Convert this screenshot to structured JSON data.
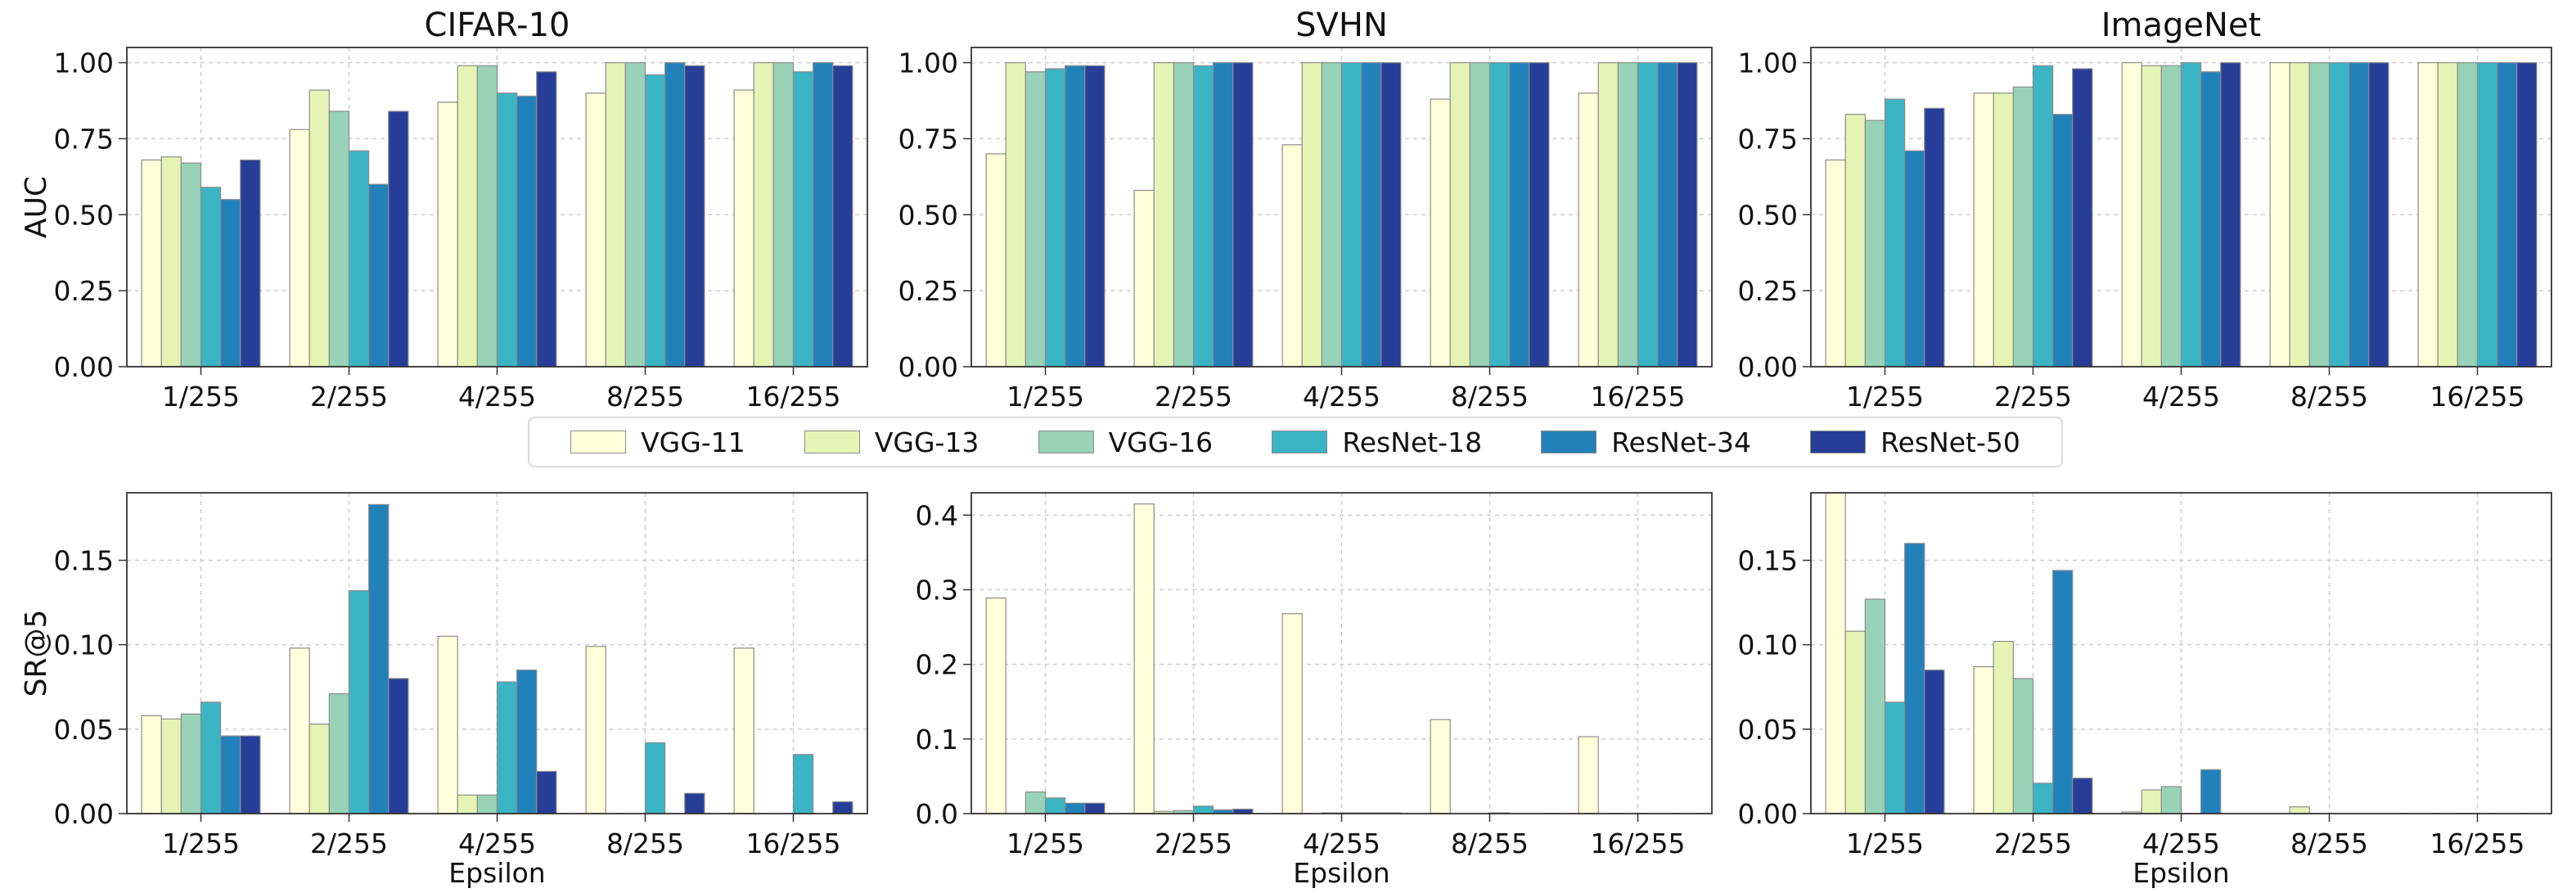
{
  "chart_data": {
    "type": "bar",
    "categories": [
      "1/255",
      "2/255",
      "4/255",
      "8/255",
      "16/255"
    ],
    "xlabel": "Epsilon",
    "series_names": [
      "VGG-11",
      "VGG-13",
      "VGG-16",
      "ResNet-18",
      "ResNet-34",
      "ResNet-50"
    ],
    "colors": [
      "#ffffd9",
      "#e5f4b4",
      "#98d2b8",
      "#3bb4c4",
      "#2381ba",
      "#263e98"
    ],
    "grid": true,
    "legend": "center, between rows",
    "panels": [
      {
        "id": "auc-cifar10",
        "title": "CIFAR-10",
        "ylabel": "AUC",
        "ylim": [
          0,
          1.05
        ],
        "yticks": [
          "0.00",
          "0.25",
          "0.50",
          "0.75",
          "1.00"
        ],
        "ytick_values": [
          0,
          0.25,
          0.5,
          0.75,
          1.0
        ],
        "values": [
          [
            0.68,
            0.69,
            0.67,
            0.59,
            0.55,
            0.68
          ],
          [
            0.78,
            0.91,
            0.84,
            0.71,
            0.6,
            0.84
          ],
          [
            0.87,
            0.99,
            0.99,
            0.9,
            0.89,
            0.97
          ],
          [
            0.9,
            1.0,
            1.0,
            0.96,
            1.0,
            0.99
          ],
          [
            0.91,
            1.0,
            1.0,
            0.97,
            1.0,
            0.99
          ]
        ]
      },
      {
        "id": "auc-svhn",
        "title": "SVHN",
        "ylabel": "",
        "ylim": [
          0,
          1.05
        ],
        "yticks": [
          "0.00",
          "0.25",
          "0.50",
          "0.75",
          "1.00"
        ],
        "ytick_values": [
          0,
          0.25,
          0.5,
          0.75,
          1.0
        ],
        "values": [
          [
            0.7,
            1.0,
            0.97,
            0.98,
            0.99,
            0.99
          ],
          [
            0.58,
            1.0,
            1.0,
            0.99,
            1.0,
            1.0
          ],
          [
            0.73,
            1.0,
            1.0,
            1.0,
            1.0,
            1.0
          ],
          [
            0.88,
            1.0,
            1.0,
            1.0,
            1.0,
            1.0
          ],
          [
            0.9,
            1.0,
            1.0,
            1.0,
            1.0,
            1.0
          ]
        ]
      },
      {
        "id": "auc-imagenet",
        "title": "ImageNet",
        "ylabel": "",
        "ylim": [
          0,
          1.05
        ],
        "yticks": [
          "0.00",
          "0.25",
          "0.50",
          "0.75",
          "1.00"
        ],
        "ytick_values": [
          0,
          0.25,
          0.5,
          0.75,
          1.0
        ],
        "values": [
          [
            0.68,
            0.83,
            0.81,
            0.88,
            0.71,
            0.85
          ],
          [
            0.9,
            0.9,
            0.92,
            0.99,
            0.83,
            0.98
          ],
          [
            1.0,
            0.99,
            0.99,
            1.0,
            0.97,
            1.0
          ],
          [
            1.0,
            1.0,
            1.0,
            1.0,
            1.0,
            1.0
          ],
          [
            1.0,
            1.0,
            1.0,
            1.0,
            1.0,
            1.0
          ]
        ]
      },
      {
        "id": "sr5-cifar10",
        "title": "",
        "ylabel": "SR@5",
        "ylim": [
          0,
          0.19
        ],
        "yticks": [
          "0.00",
          "0.05",
          "0.10",
          "0.15"
        ],
        "ytick_values": [
          0,
          0.05,
          0.1,
          0.15
        ],
        "values": [
          [
            0.058,
            0.056,
            0.059,
            0.066,
            0.046,
            0.046
          ],
          [
            0.098,
            0.053,
            0.071,
            0.132,
            0.183,
            0.08
          ],
          [
            0.105,
            0.011,
            0.011,
            0.078,
            0.085,
            0.025
          ],
          [
            0.099,
            0.0,
            0.0,
            0.042,
            0.0,
            0.012
          ],
          [
            0.098,
            0.0,
            0.0,
            0.035,
            0.0,
            0.007
          ]
        ]
      },
      {
        "id": "sr5-svhn",
        "title": "",
        "ylabel": "",
        "ylim": [
          0,
          0.43
        ],
        "yticks": [
          "0.0",
          "0.1",
          "0.2",
          "0.3",
          "0.4"
        ],
        "ytick_values": [
          0,
          0.1,
          0.2,
          0.3,
          0.4
        ],
        "values": [
          [
            0.289,
            0.0,
            0.029,
            0.021,
            0.014,
            0.014
          ],
          [
            0.415,
            0.003,
            0.004,
            0.01,
            0.005,
            0.006
          ],
          [
            0.268,
            0.0,
            0.001,
            0.001,
            0.001,
            0.001
          ],
          [
            0.126,
            0.0,
            0.0,
            0.001,
            0.0,
            0.0
          ],
          [
            0.103,
            0.0,
            0.0,
            0.0,
            0.0,
            0.0
          ]
        ]
      },
      {
        "id": "sr5-imagenet",
        "title": "",
        "ylabel": "",
        "ylim": [
          0,
          0.19
        ],
        "yticks": [
          "0.00",
          "0.05",
          "0.10",
          "0.15"
        ],
        "ytick_values": [
          0,
          0.05,
          0.1,
          0.15
        ],
        "values": [
          [
            0.19,
            0.108,
            0.127,
            0.066,
            0.16,
            0.085
          ],
          [
            0.087,
            0.102,
            0.08,
            0.018,
            0.144,
            0.021
          ],
          [
            0.001,
            0.014,
            0.016,
            0.0,
            0.026,
            0.0
          ],
          [
            0.0,
            0.004,
            0.0,
            0.0,
            0.0,
            0.0
          ],
          [
            0.0,
            0.0,
            0.0,
            0.0,
            0.0,
            0.0
          ]
        ]
      }
    ]
  }
}
